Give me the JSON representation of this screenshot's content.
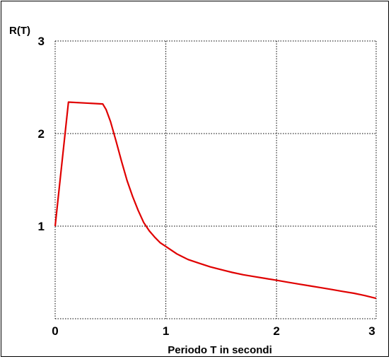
{
  "chart_data": {
    "type": "line",
    "title": "",
    "xlabel": "Periodo T in secondi",
    "ylabel": "R(T)",
    "xlim": [
      0,
      2.9
    ],
    "ylim": [
      0,
      3
    ],
    "x_ticks": [
      "0",
      "1",
      "2",
      "3"
    ],
    "y_ticks": [
      "1",
      "2",
      "3"
    ],
    "grid": true,
    "series": [
      {
        "color": "#e00000",
        "points": [
          [
            0.0,
            1.0
          ],
          [
            0.12,
            2.34
          ],
          [
            0.43,
            2.32
          ],
          [
            0.46,
            2.26
          ],
          [
            0.5,
            2.13
          ],
          [
            0.55,
            1.92
          ],
          [
            0.6,
            1.7
          ],
          [
            0.65,
            1.49
          ],
          [
            0.7,
            1.32
          ],
          [
            0.75,
            1.17
          ],
          [
            0.8,
            1.04
          ],
          [
            0.85,
            0.95
          ],
          [
            0.9,
            0.88
          ],
          [
            0.95,
            0.82
          ],
          [
            1.0,
            0.78
          ],
          [
            1.1,
            0.7
          ],
          [
            1.2,
            0.64
          ],
          [
            1.3,
            0.6
          ],
          [
            1.4,
            0.56
          ],
          [
            1.5,
            0.53
          ],
          [
            1.6,
            0.5
          ],
          [
            1.7,
            0.475
          ],
          [
            1.8,
            0.455
          ],
          [
            1.9,
            0.435
          ],
          [
            2.0,
            0.415
          ],
          [
            2.1,
            0.395
          ],
          [
            2.2,
            0.375
          ],
          [
            2.3,
            0.355
          ],
          [
            2.4,
            0.335
          ],
          [
            2.5,
            0.315
          ],
          [
            2.6,
            0.295
          ],
          [
            2.7,
            0.275
          ],
          [
            2.8,
            0.25
          ],
          [
            2.9,
            0.22
          ]
        ]
      }
    ]
  }
}
